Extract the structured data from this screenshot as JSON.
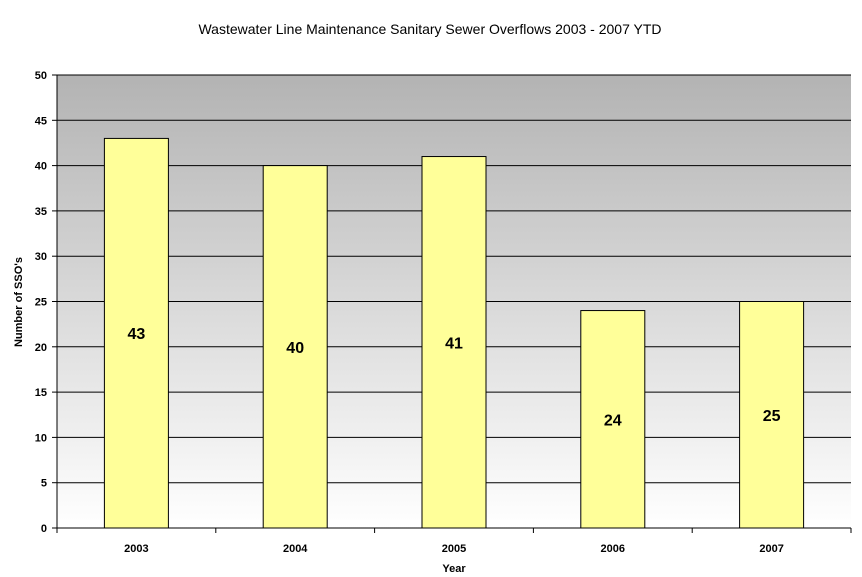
{
  "chart_data": {
    "type": "bar",
    "title": "Wastewater Line Maintenance Sanitary Sewer Overflows 2003 - 2007 YTD",
    "xlabel": "Year",
    "ylabel": "Number of SSO's",
    "categories": [
      "2003",
      "2004",
      "2005",
      "2006",
      "2007"
    ],
    "values": [
      43,
      40,
      41,
      24,
      25
    ],
    "data_labels": [
      "43",
      "40",
      "41",
      "24",
      "25"
    ],
    "ylim": [
      0,
      50
    ],
    "yticks": [
      0,
      5,
      10,
      15,
      20,
      25,
      30,
      35,
      40,
      45,
      50
    ],
    "grid": true,
    "legend": "none",
    "colors": {
      "bar_fill": "#ffff99",
      "bar_stroke": "#000000",
      "plot_bg_top": "#b3b3b3",
      "plot_bg_bottom": "#ffffff",
      "gridline": "#000000"
    }
  }
}
